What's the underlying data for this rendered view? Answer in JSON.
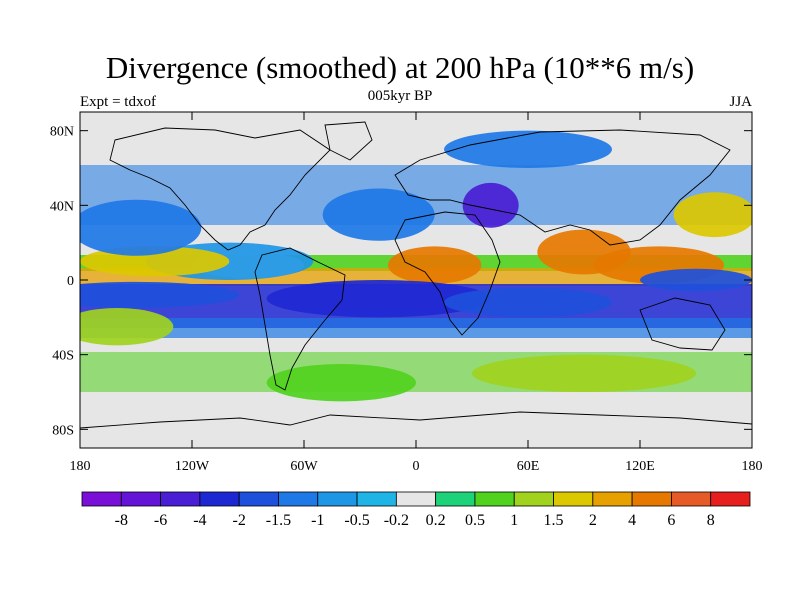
{
  "title": "Divergence (smoothed) at 200 hPa (10**6 m/s)",
  "subtitle": "005kyr BP",
  "left_label": "Expt = tdxof",
  "right_label": "JJA",
  "axes": {
    "lon_ticks": [
      "180",
      "120W",
      "60W",
      "0",
      "60E",
      "120E",
      "180"
    ],
    "lat_ticks": [
      "80N",
      "40N",
      "0",
      "40S",
      "80S"
    ]
  },
  "colorbar": {
    "colors": [
      "#7a10d8",
      "#6414d6",
      "#4a1ed4",
      "#1e28d2",
      "#1e50dc",
      "#1e78e6",
      "#1e96e6",
      "#1eb4e6",
      "#e6e6e6",
      "#1ed27a",
      "#50d21e",
      "#a0d21e",
      "#dcc800",
      "#e6a000",
      "#e67800",
      "#e65a28",
      "#e61e1e"
    ],
    "labels": [
      "-8",
      "-6",
      "-4",
      "-2",
      "-1.5",
      "-1",
      "-0.5",
      "-0.2",
      "0.2",
      "0.5",
      "1",
      "1.5",
      "2",
      "4",
      "6",
      "8"
    ]
  },
  "color_regions": [
    {
      "level": 8,
      "lon": -90,
      "lat": 8,
      "rlon": 30,
      "rlat": 7
    },
    {
      "level": 6,
      "lon": -100,
      "lat": 10,
      "rlon": 45,
      "rlat": 10
    },
    {
      "level": 12,
      "lon": -140,
      "lat": 10,
      "rlon": 40,
      "rlat": 8
    },
    {
      "level": 14,
      "lon": 10,
      "lat": 8,
      "rlon": 25,
      "rlat": 10
    },
    {
      "level": 14,
      "lon": 90,
      "lat": 15,
      "rlon": 25,
      "rlat": 12
    },
    {
      "level": 14,
      "lon": 130,
      "lat": 8,
      "rlon": 35,
      "rlat": 10
    },
    {
      "level": 4,
      "lon": -150,
      "lat": -8,
      "rlon": 55,
      "rlat": 7
    },
    {
      "level": 3,
      "lon": -20,
      "lat": -10,
      "rlon": 60,
      "rlat": 10
    },
    {
      "level": 4,
      "lon": 60,
      "lat": -12,
      "rlon": 45,
      "rlat": 8
    },
    {
      "level": 4,
      "lon": 150,
      "lat": 0,
      "rlon": 30,
      "rlat": 6
    },
    {
      "level": 5,
      "lon": -150,
      "lat": 28,
      "rlon": 35,
      "rlat": 15
    },
    {
      "level": 5,
      "lon": -20,
      "lat": 35,
      "rlon": 30,
      "rlat": 14
    },
    {
      "level": 2,
      "lon": 40,
      "lat": 40,
      "rlon": 15,
      "rlat": 12
    },
    {
      "level": 5,
      "lon": 60,
      "lat": 70,
      "rlon": 45,
      "rlat": 10
    },
    {
      "level": 12,
      "lon": 160,
      "lat": 35,
      "rlon": 22,
      "rlat": 12
    },
    {
      "level": 11,
      "lon": -160,
      "lat": -25,
      "rlon": 30,
      "rlat": 10
    },
    {
      "level": 11,
      "lon": 90,
      "lat": -50,
      "rlon": 60,
      "rlat": 10
    },
    {
      "level": 10,
      "lon": -40,
      "lat": -55,
      "rlon": 40,
      "rlat": 10
    }
  ]
}
